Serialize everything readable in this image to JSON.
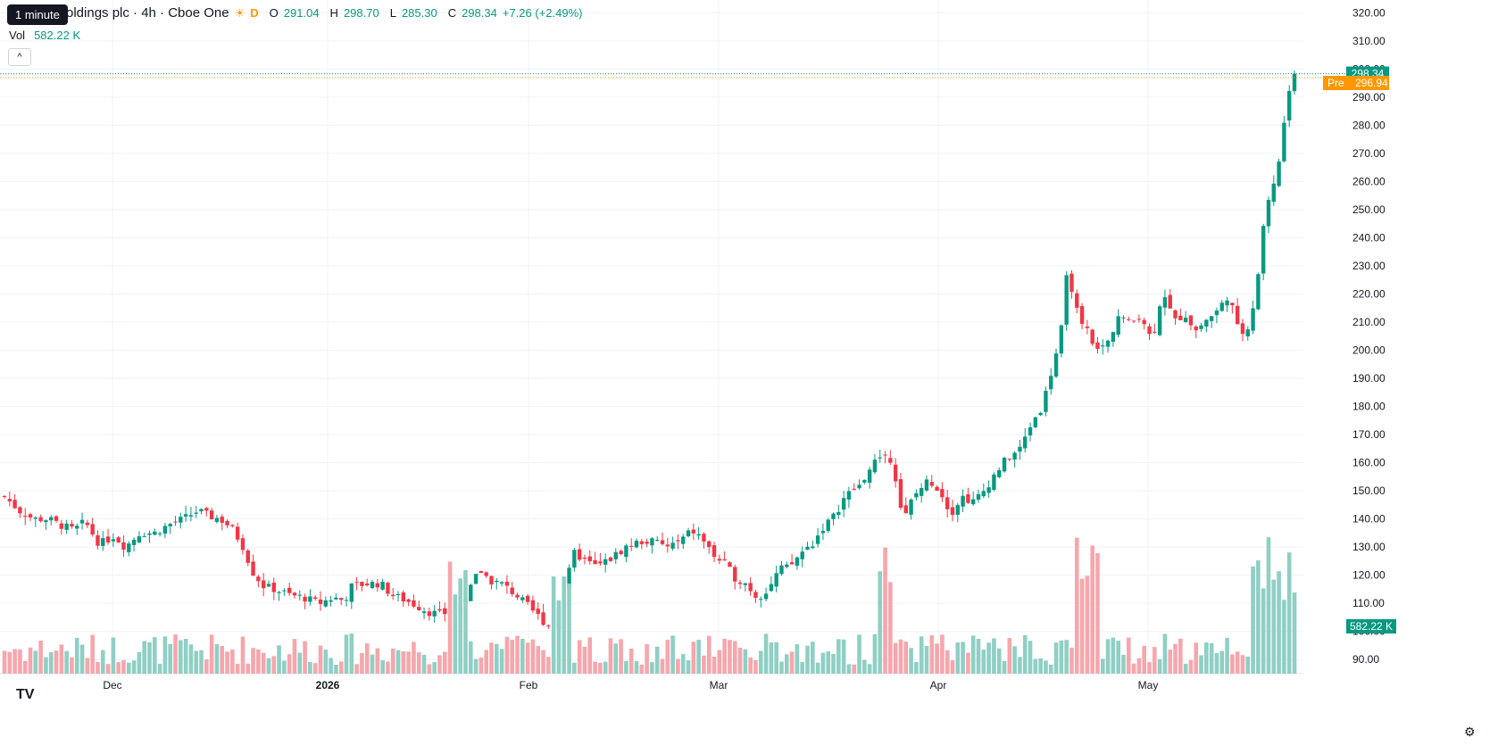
{
  "legend": {
    "symbol": "oldings plc · 4h · Cboe One",
    "flag": "D",
    "o_label": "O",
    "o_value": "291.04",
    "h_label": "H",
    "h_value": "298.70",
    "l_label": "L",
    "l_value": "285.30",
    "c_label": "C",
    "c_value": "298.34",
    "change": "+7.26 (+2.49%)"
  },
  "tooltip": "1 minute",
  "volume": {
    "label": "Vol",
    "value": "582.22 K"
  },
  "price_tags": {
    "last": "298.34",
    "pre_label": "Pre",
    "pre": "296.94",
    "volume": "582.22 K"
  },
  "colors": {
    "up": "#089981",
    "down": "#f23645",
    "up_vol": "#8fcfc4",
    "down_vol": "#f6a6ac",
    "pre": "#ff9800",
    "grid": "#f0f3fa"
  },
  "chart_data": {
    "type": "candlestick",
    "interval": "4h",
    "y_ticks": [
      "90.00",
      "100.00",
      "110.00",
      "120.00",
      "130.00",
      "140.00",
      "150.00",
      "160.00",
      "170.00",
      "180.00",
      "190.00",
      "200.00",
      "210.00",
      "220.00",
      "230.00",
      "240.00",
      "250.00",
      "260.00",
      "270.00",
      "280.00",
      "290.00",
      "300.00",
      "310.00",
      "320.00"
    ],
    "ylim": [
      85,
      322
    ],
    "x_ticks": [
      "Dec",
      "2026",
      "Feb",
      "Mar",
      "Apr",
      "May"
    ],
    "last_price": 298.34,
    "pre_price": 296.94,
    "close_path": [
      [
        0,
        148
      ],
      [
        8,
        143
      ],
      [
        16,
        140
      ],
      [
        24,
        140
      ],
      [
        30,
        138
      ],
      [
        38,
        136
      ],
      [
        44,
        139
      ],
      [
        52,
        131
      ],
      [
        60,
        134
      ],
      [
        66,
        130
      ],
      [
        74,
        135
      ],
      [
        82,
        135
      ],
      [
        90,
        138
      ],
      [
        98,
        140
      ],
      [
        106,
        143
      ],
      [
        112,
        141
      ],
      [
        118,
        140
      ],
      [
        124,
        137
      ],
      [
        130,
        131
      ],
      [
        136,
        121
      ],
      [
        142,
        116
      ],
      [
        148,
        115
      ],
      [
        156,
        113
      ],
      [
        164,
        112
      ],
      [
        172,
        110
      ],
      [
        180,
        112
      ],
      [
        186,
        111
      ],
      [
        190,
        116
      ],
      [
        198,
        117
      ],
      [
        206,
        117
      ],
      [
        212,
        113
      ],
      [
        220,
        111
      ],
      [
        226,
        109
      ],
      [
        232,
        107
      ],
      [
        238,
        106
      ],
      [
        244,
        107
      ],
      [
        248,
        108
      ],
      [
        254,
        114
      ],
      [
        260,
        122
      ],
      [
        266,
        118
      ],
      [
        272,
        117
      ],
      [
        280,
        113
      ],
      [
        288,
        108
      ],
      [
        296,
        103
      ],
      [
        300,
        101
      ],
      [
        306,
        115
      ],
      [
        312,
        128
      ],
      [
        318,
        125
      ],
      [
        324,
        123
      ],
      [
        332,
        126
      ],
      [
        340,
        130
      ],
      [
        348,
        132
      ],
      [
        356,
        132
      ],
      [
        362,
        130
      ],
      [
        370,
        132
      ],
      [
        376,
        136
      ],
      [
        382,
        133
      ],
      [
        388,
        127
      ],
      [
        394,
        124
      ],
      [
        400,
        119
      ],
      [
        406,
        117
      ],
      [
        412,
        112
      ],
      [
        418,
        115
      ],
      [
        424,
        122
      ],
      [
        430,
        123
      ],
      [
        436,
        128
      ],
      [
        442,
        131
      ],
      [
        448,
        137
      ],
      [
        454,
        141
      ],
      [
        460,
        148
      ],
      [
        468,
        152
      ],
      [
        474,
        158
      ],
      [
        480,
        163
      ],
      [
        486,
        161
      ],
      [
        492,
        139
      ],
      [
        496,
        146
      ],
      [
        500,
        150
      ],
      [
        506,
        154
      ],
      [
        512,
        150
      ],
      [
        518,
        142
      ],
      [
        524,
        148
      ],
      [
        530,
        146
      ],
      [
        536,
        150
      ],
      [
        542,
        156
      ],
      [
        548,
        161
      ],
      [
        556,
        165
      ],
      [
        562,
        174
      ],
      [
        568,
        180
      ],
      [
        574,
        195
      ],
      [
        578,
        205
      ],
      [
        582,
        230
      ],
      [
        586,
        215
      ],
      [
        592,
        208
      ],
      [
        598,
        200
      ],
      [
        604,
        203
      ],
      [
        610,
        213
      ],
      [
        616,
        209
      ],
      [
        622,
        213
      ],
      [
        628,
        203
      ],
      [
        634,
        222
      ],
      [
        640,
        210
      ],
      [
        646,
        213
      ],
      [
        652,
        207
      ],
      [
        658,
        211
      ],
      [
        664,
        214
      ],
      [
        670,
        220
      ],
      [
        676,
        205
      ],
      [
        682,
        210
      ],
      [
        686,
        227
      ],
      [
        690,
        250
      ],
      [
        694,
        258
      ],
      [
        698,
        268
      ],
      [
        702,
        290
      ],
      [
        706,
        298.34
      ]
    ],
    "volume_note": "relative volume bars, green for up candles, red for down candles"
  }
}
